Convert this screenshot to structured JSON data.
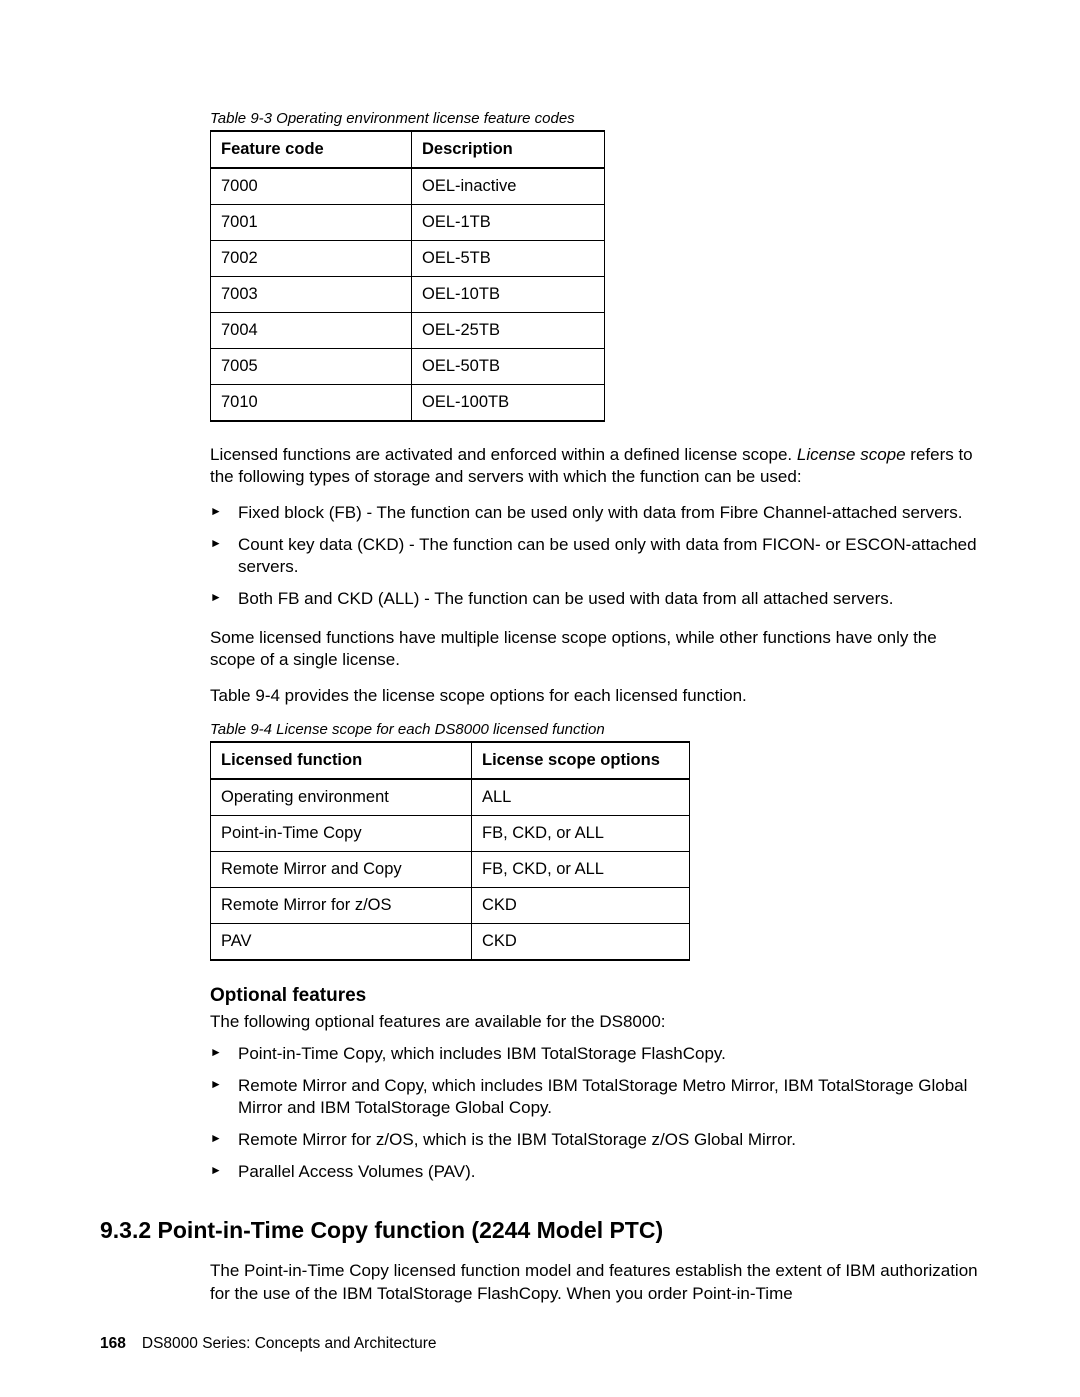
{
  "captions": {
    "t1": "Table 9-3   Operating environment license feature codes",
    "t2": "Table 9-4   License scope for each DS8000 licensed function"
  },
  "table1": {
    "headers": [
      "Feature code",
      "Description"
    ],
    "rows": [
      [
        "7000",
        "OEL-inactive"
      ],
      [
        "7001",
        "OEL-1TB"
      ],
      [
        "7002",
        "OEL-5TB"
      ],
      [
        "7003",
        "OEL-10TB"
      ],
      [
        "7004",
        "OEL-25TB"
      ],
      [
        "7005",
        "OEL-50TB"
      ],
      [
        "7010",
        "OEL-100TB"
      ]
    ]
  },
  "para1a": "Licensed functions are activated and enforced within a defined license scope. ",
  "para1b": "License scope",
  "para1c": " refers to the following types of storage and servers with which the function can be used:",
  "list1": [
    "Fixed block (FB) - The function can be used only with data from Fibre Channel-attached servers.",
    "Count key data (CKD) - The function can be used only with data from FICON- or ESCON-attached servers.",
    "Both FB and CKD (ALL) - The function can be used with data from all attached servers."
  ],
  "para2": "Some licensed functions have multiple license scope options, while other functions have only the scope of a single license.",
  "para3": "Table 9-4 provides the license scope options for each licensed function.",
  "table2": {
    "headers": [
      "Licensed function",
      "License scope options"
    ],
    "rows": [
      [
        "Operating environment",
        "ALL"
      ],
      [
        "Point-in-Time Copy",
        "FB, CKD, or ALL"
      ],
      [
        "Remote Mirror and Copy",
        "FB, CKD, or ALL"
      ],
      [
        "Remote Mirror for z/OS",
        "CKD"
      ],
      [
        "PAV",
        "CKD"
      ]
    ]
  },
  "h3": "Optional features",
  "para4": "The following optional features are available for the DS8000:",
  "list2": [
    "Point-in-Time Copy, which includes IBM TotalStorage FlashCopy.",
    "Remote Mirror and Copy, which includes IBM TotalStorage Metro Mirror, IBM TotalStorage Global Mirror and IBM TotalStorage Global Copy.",
    "Remote Mirror for z/OS, which is the IBM TotalStorage z/OS Global Mirror.",
    "Parallel Access Volumes (PAV)."
  ],
  "h2": "9.3.2  Point-in-Time Copy function (2244 Model PTC)",
  "para5": "The Point-in-Time Copy licensed function model and features establish the extent of IBM authorization for the use of the IBM TotalStorage FlashCopy. When you order Point-in-Time",
  "footer": {
    "page": "168",
    "title": "DS8000 Series: Concepts and Architecture"
  }
}
